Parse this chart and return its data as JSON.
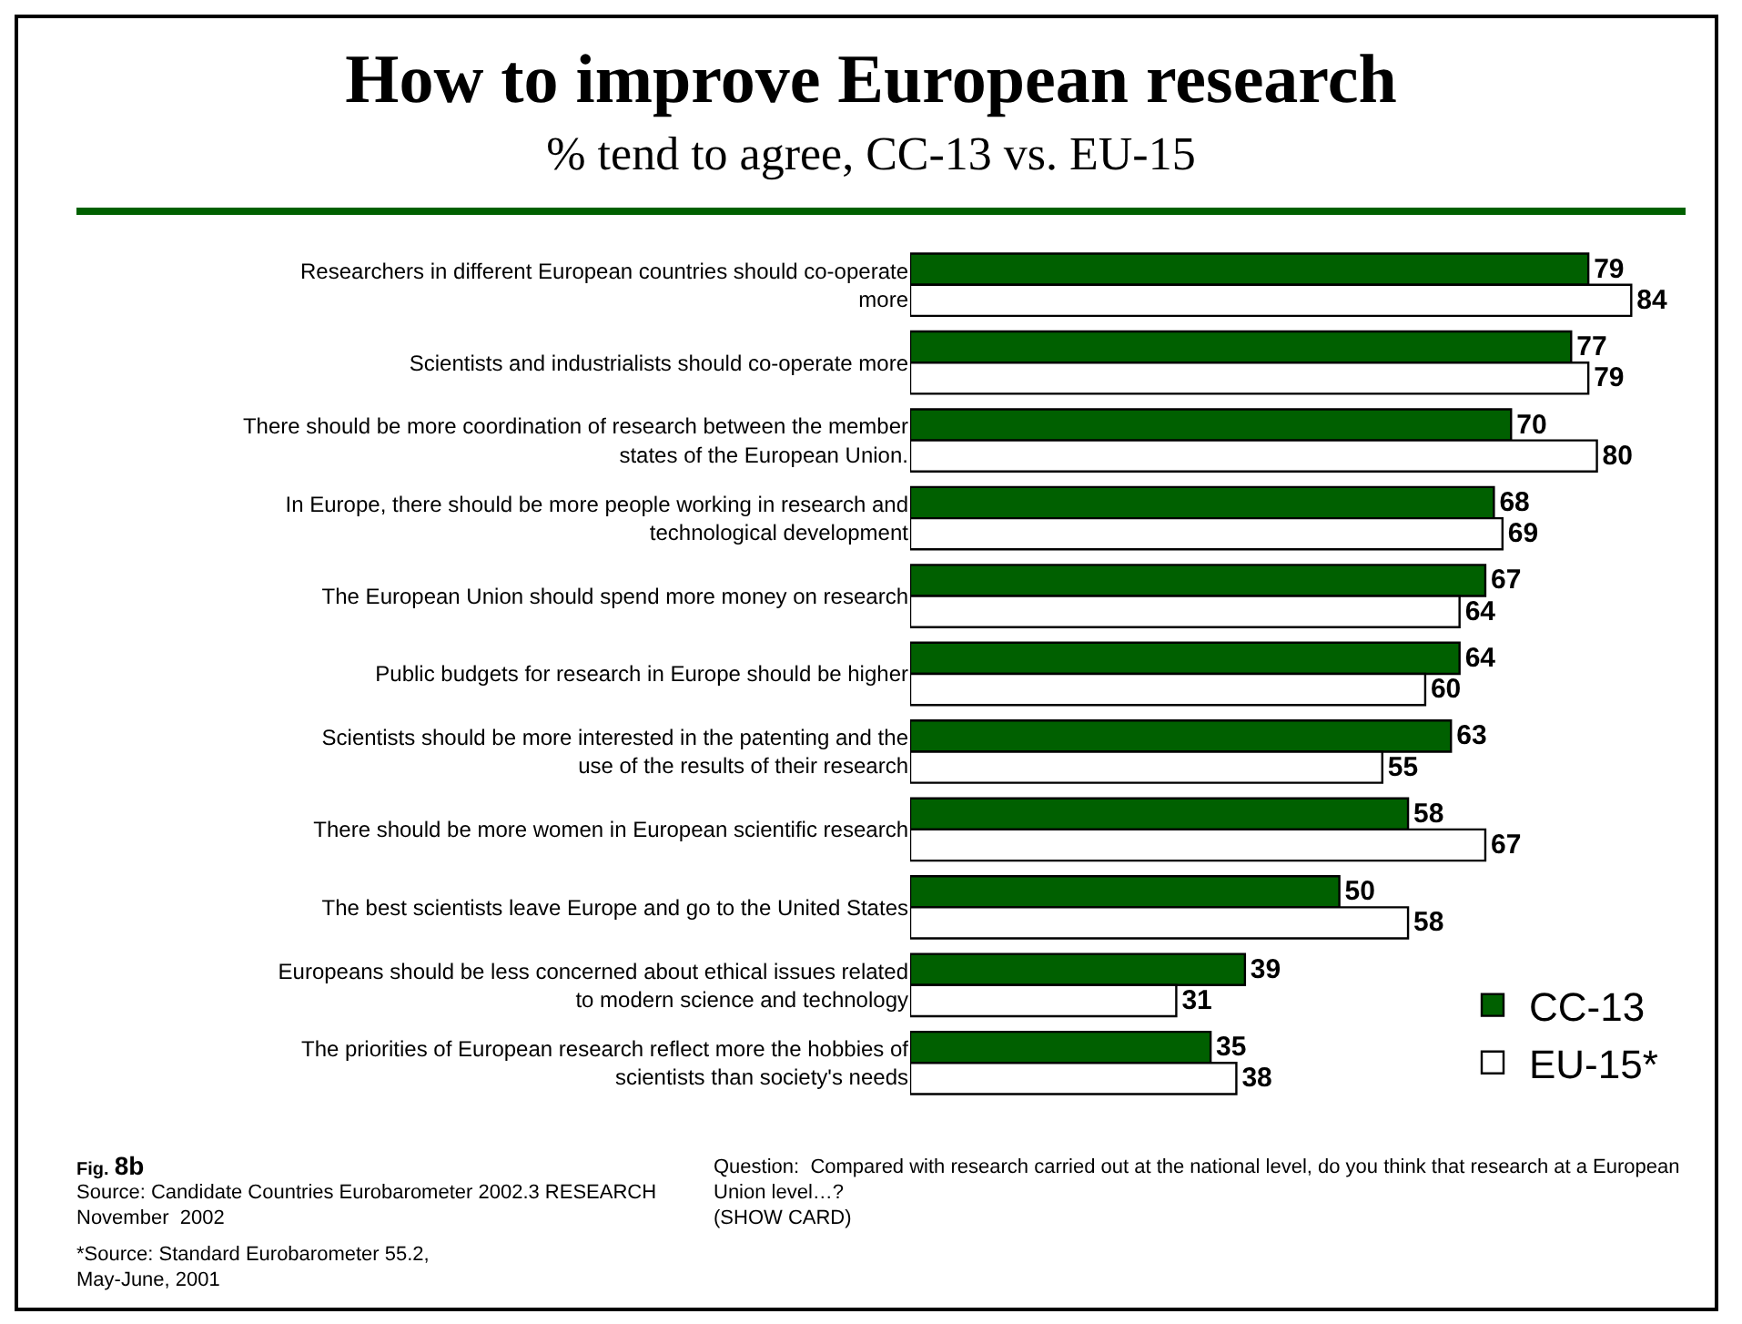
{
  "chart_data": {
    "type": "bar",
    "orientation": "horizontal",
    "title": "How to improve European research",
    "subtitle": "% tend to agree, CC-13 vs. EU-15",
    "categories": [
      "Researchers in different European countries should co-operate more",
      "Scientists and industrialists should co-operate more",
      "There should be more coordination of research between the member states of the European Union.",
      "In Europe, there should be more people working in research and technological development",
      "The European Union should spend more money on research",
      "Public budgets for research in Europe should be higher",
      "Scientists should be more interested in the patenting and the use of the results of their research",
      "There should be more women in European scientific research",
      "The best scientists leave Europe and go to the United States",
      "Europeans should be less concerned about ethical issues related to modern science and technology",
      "The priorities of European research reflect more the hobbies of scientists than society's needs"
    ],
    "series": [
      {
        "name": "CC-13",
        "color": "#006000",
        "values": [
          79,
          77,
          70,
          68,
          67,
          64,
          63,
          58,
          50,
          39,
          35
        ]
      },
      {
        "name": "EU-15*",
        "color": "#ffffff",
        "values": [
          84,
          79,
          80,
          69,
          64,
          60,
          55,
          67,
          58,
          31,
          38
        ]
      }
    ],
    "tick_labels": "y",
    "data_labels": true,
    "grid": false,
    "legend": "bottom right",
    "annotations": [
      "Fig. 8b",
      "Source: Candidate Countries Eurobarometer 2002.3 RESEARCH\nNovember  2002",
      "*Source: Standard Eurobarometer 55.2,\nMay-June, 2001",
      "Question:  Compared with research carried out at the national level, do you think that research at a European\nUnion level…?\n(SHOW CARD)"
    ]
  }
}
